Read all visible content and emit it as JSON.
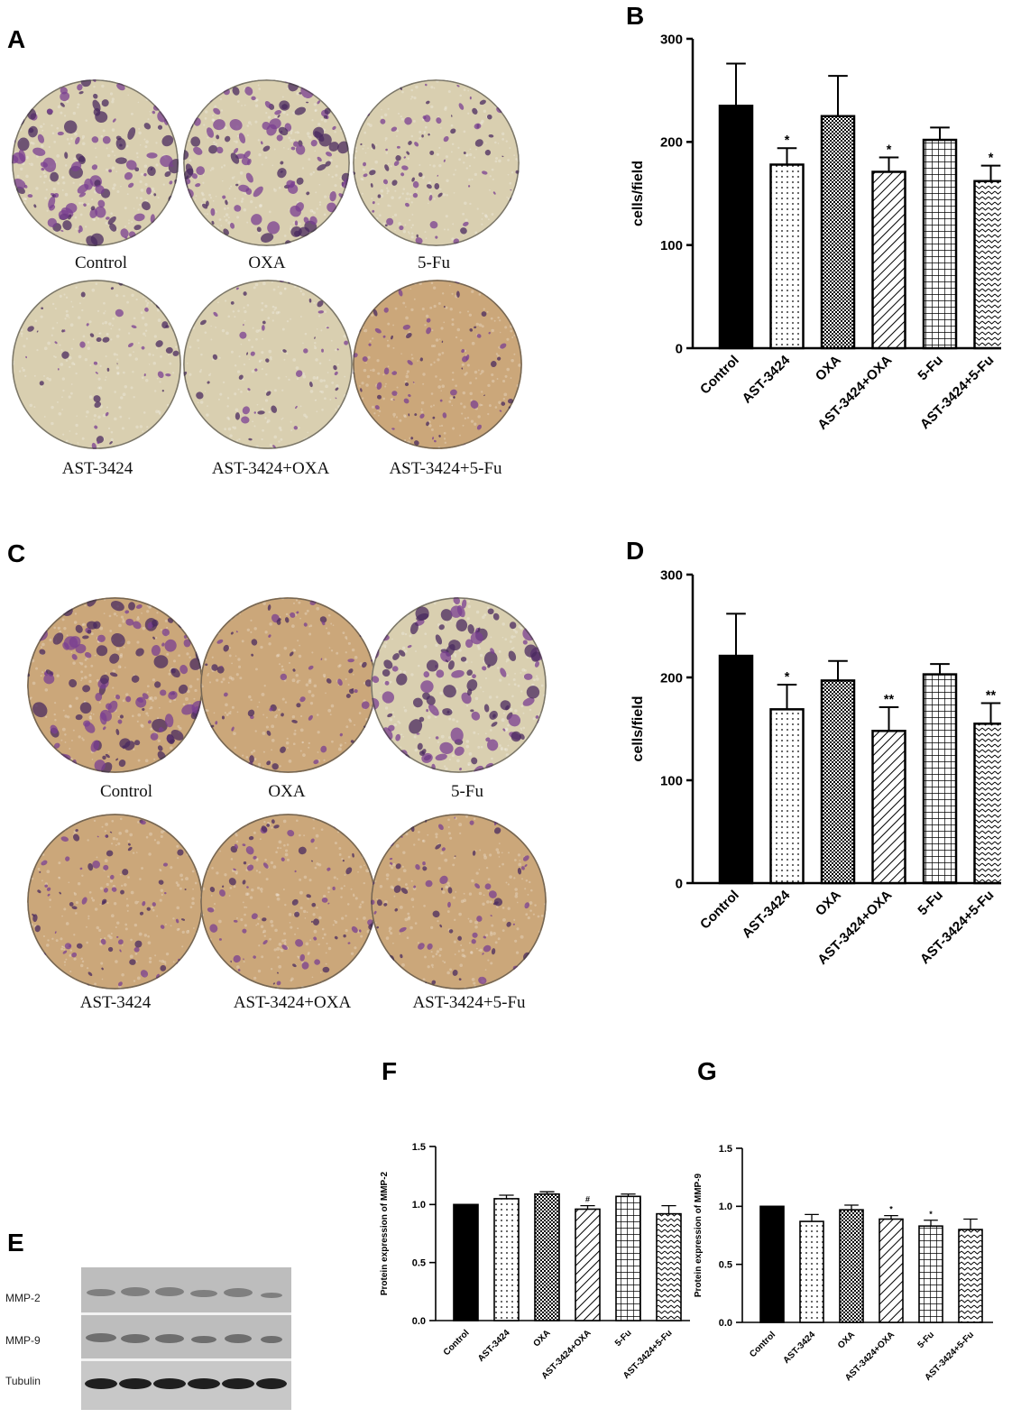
{
  "panels": {
    "A": "A",
    "B": "B",
    "C": "C",
    "D": "D",
    "E": "E",
    "F": "F",
    "G": "G"
  },
  "colors": {
    "bar_edge": "#000000",
    "dish_plain": "#d9cfb0",
    "dish_warm": "#cba77a",
    "stain": "#7a3f92",
    "stain_dark": "#4a2a5f"
  },
  "panelA": {
    "dishes": [
      {
        "caption": "Control",
        "tone": "plain",
        "density": "high"
      },
      {
        "caption": "OXA",
        "tone": "plain",
        "density": "high"
      },
      {
        "caption": "5-Fu",
        "tone": "plain",
        "density": "medium"
      },
      {
        "caption": "AST-3424",
        "tone": "plain",
        "density": "low"
      },
      {
        "caption": "AST-3424+OXA",
        "tone": "plain",
        "density": "low"
      },
      {
        "caption": "AST-3424+5-Fu",
        "tone": "warm",
        "density": "medium"
      }
    ]
  },
  "panelC": {
    "dishes": [
      {
        "caption": "Control",
        "tone": "warm",
        "density": "high"
      },
      {
        "caption": "OXA",
        "tone": "warm",
        "density": "medium"
      },
      {
        "caption": "5-Fu",
        "tone": "plain",
        "density": "high"
      },
      {
        "caption": "AST-3424",
        "tone": "warm",
        "density": "medium"
      },
      {
        "caption": "AST-3424+OXA",
        "tone": "warm",
        "density": "medium"
      },
      {
        "caption": "AST-3424+5-Fu",
        "tone": "warm",
        "density": "medium"
      }
    ]
  },
  "blot": {
    "rows": [
      "MMP-2",
      "MMP-9",
      "Tubulin"
    ]
  },
  "chart_data": [
    {
      "id": "B",
      "type": "bar",
      "categories": [
        "Control",
        "AST-3424",
        "OXA",
        "AST-3424+OXA",
        "5-Fu",
        "AST-3424+5-Fu"
      ],
      "values": [
        235,
        178,
        225,
        171,
        202,
        162
      ],
      "errors": [
        41,
        16,
        39,
        14,
        12,
        15
      ],
      "annotations": [
        "",
        "*",
        "",
        "*",
        "",
        "*"
      ],
      "patterns": [
        "solid",
        "dots",
        "check",
        "diag",
        "grid",
        "chevron"
      ],
      "ylabel": "cells/field",
      "ylim": [
        0,
        300
      ],
      "yticks": [
        0,
        100,
        200,
        300
      ],
      "yticklabels": [
        "0",
        "100",
        "200",
        "300"
      ]
    },
    {
      "id": "D",
      "type": "bar",
      "categories": [
        "Control",
        "AST-3424",
        "OXA",
        "AST-3424+OXA",
        "5-Fu",
        "AST-3424+5-Fu"
      ],
      "values": [
        221,
        169,
        197,
        148,
        203,
        155
      ],
      "errors": [
        41,
        24,
        19,
        23,
        10,
        20
      ],
      "annotations": [
        "",
        "*",
        "",
        "**",
        "",
        "**"
      ],
      "patterns": [
        "solid",
        "dots",
        "check",
        "diag",
        "grid",
        "chevron"
      ],
      "ylabel": "cells/field",
      "ylim": [
        0,
        300
      ],
      "yticks": [
        0,
        100,
        200,
        300
      ],
      "yticklabels": [
        "0",
        "100",
        "200",
        "300"
      ]
    },
    {
      "id": "F",
      "type": "bar",
      "categories": [
        "Control",
        "AST-3424",
        "OXA",
        "AST-3424+OXA",
        "5-Fu",
        "AST-3424+5-Fu"
      ],
      "values": [
        1.0,
        1.05,
        1.09,
        0.96,
        1.07,
        0.92
      ],
      "errors": [
        0,
        0.03,
        0.02,
        0.03,
        0.02,
        0.07
      ],
      "annotations": [
        "",
        "",
        "",
        "#",
        "",
        ""
      ],
      "patterns": [
        "solid",
        "dots",
        "check",
        "diag",
        "grid",
        "chevron"
      ],
      "ylabel": "Protein expression of MMP-2",
      "ylim": [
        0,
        1.5
      ],
      "yticks": [
        0,
        0.5,
        1.0,
        1.5
      ],
      "yticklabels": [
        "0.0",
        "0.5",
        "1.0",
        "1.5"
      ]
    },
    {
      "id": "G",
      "type": "bar",
      "categories": [
        "Control",
        "AST-3424",
        "OXA",
        "AST-3424+OXA",
        "5-Fu",
        "AST-3424+5-Fu"
      ],
      "values": [
        1.0,
        0.87,
        0.97,
        0.89,
        0.83,
        0.8
      ],
      "errors": [
        0,
        0.06,
        0.04,
        0.03,
        0.05,
        0.09
      ],
      "annotations": [
        "",
        "",
        "",
        "*",
        "*",
        ""
      ],
      "patterns": [
        "solid",
        "dots",
        "check",
        "diag",
        "grid",
        "chevron"
      ],
      "ylabel": "Protein expression of MMP-9",
      "ylim": [
        0,
        1.5
      ],
      "yticks": [
        0,
        0.5,
        1.0,
        1.5
      ],
      "yticklabels": [
        "0.0",
        "0.5",
        "1.0",
        "1.5"
      ]
    }
  ]
}
